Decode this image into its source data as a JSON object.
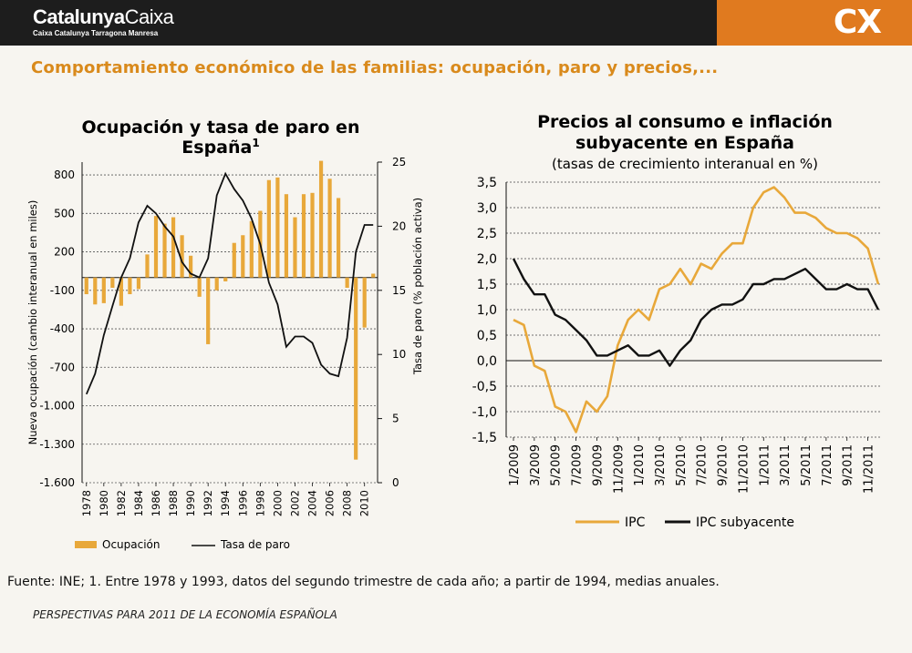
{
  "header": {
    "brand_bold": "Catalunya",
    "brand_light": "Caixa",
    "brand_sub": "Caixa Catalunya Tarragona Manresa",
    "logo": "CX",
    "accent_color": "#e07a1f"
  },
  "main_title": "Comportamiento económico de las familias: ocupación, paro y precios,...",
  "footnote": "Fuente: INE; 1. Entre 1978 y 1993, datos del segundo trimestre de cada año; a partir de 1994, medias anuales.",
  "footer": "PERSPECTIVAS PARA 2011 DE LA ECONOMÍA ESPAÑOLA",
  "chart_data": [
    {
      "type": "bar",
      "title": "Ocupación y tasa de paro en España",
      "title_sup": "1",
      "ylabel": "Nueva ocupación (cambio interanual en miles)",
      "y2label": "Tasa de paro (% población activa)",
      "ylim": [
        -1600,
        900
      ],
      "yticks": [
        800,
        500,
        200,
        -100,
        -400,
        -700,
        -1000,
        -1300,
        -1600
      ],
      "ytick_labels": [
        "800",
        "500",
        "200",
        "-100",
        "-400",
        "-700",
        "-1.000",
        "-1.300",
        "-1.600"
      ],
      "y2lim": [
        0,
        25
      ],
      "y2ticks": [
        25,
        20,
        15,
        10,
        5,
        0
      ],
      "x": [
        1978,
        1979,
        1980,
        1981,
        1982,
        1983,
        1984,
        1985,
        1986,
        1987,
        1988,
        1989,
        1990,
        1991,
        1992,
        1993,
        1994,
        1995,
        1996,
        1997,
        1998,
        1999,
        2000,
        2001,
        2002,
        2003,
        2004,
        2005,
        2006,
        2007,
        2008,
        2009,
        2010,
        2011
      ],
      "xtick_labels": [
        "1978",
        "1980",
        "1982",
        "1984",
        "1986",
        "1988",
        "1990",
        "1992",
        "1994",
        "1996",
        "1998",
        "2000",
        "2002",
        "2004",
        "2006",
        "2008",
        "2010"
      ],
      "legend": [
        "Ocupación",
        "Tasa de paro"
      ],
      "series": [
        {
          "name": "Ocupación",
          "type": "bar",
          "axis": "left",
          "color": "#e8a83a",
          "values": [
            -130,
            -210,
            -200,
            -80,
            -220,
            -130,
            -90,
            180,
            480,
            420,
            470,
            330,
            170,
            -150,
            -520,
            -100,
            -30,
            270,
            330,
            440,
            520,
            760,
            780,
            650,
            470,
            650,
            660,
            910,
            770,
            620,
            -80,
            -1420,
            -390,
            30
          ]
        },
        {
          "name": "Tasa de paro",
          "type": "line",
          "axis": "right",
          "color": "#111111",
          "values": [
            6.9,
            8.5,
            11.5,
            13.8,
            16.0,
            17.5,
            20.3,
            21.6,
            21.0,
            20.0,
            19.2,
            17.2,
            16.3,
            16.0,
            17.5,
            22.4,
            24.1,
            22.9,
            22.0,
            20.6,
            18.6,
            15.6,
            13.9,
            10.6,
            11.4,
            11.4,
            10.9,
            9.2,
            8.5,
            8.3,
            11.3,
            18.0,
            20.1,
            20.1
          ]
        }
      ]
    },
    {
      "type": "line",
      "title": "Precios al consumo e inflación subyacente en España",
      "subtitle": "(tasas de crecimiento interanual en %)",
      "ylim": [
        -1.5,
        3.5
      ],
      "yticks": [
        3.5,
        3.0,
        2.5,
        2.0,
        1.5,
        1.0,
        0.5,
        0.0,
        -0.5,
        -1.0,
        -1.5
      ],
      "ytick_labels": [
        "3,5",
        "3,0",
        "2,5",
        "2,0",
        "1,5",
        "1,0",
        "0,5",
        "0,0",
        "-0,5",
        "-1,0",
        "-1,5"
      ],
      "grid": true,
      "x": [
        "1/2009",
        "2/2009",
        "3/2009",
        "4/2009",
        "5/2009",
        "6/2009",
        "7/2009",
        "8/2009",
        "9/2009",
        "10/2009",
        "11/2009",
        "12/2009",
        "1/2010",
        "2/2010",
        "3/2010",
        "4/2010",
        "5/2010",
        "6/2010",
        "7/2010",
        "8/2010",
        "9/2010",
        "10/2010",
        "11/2010",
        "12/2010",
        "1/2011",
        "2/2011",
        "3/2011",
        "4/2011",
        "5/2011",
        "6/2011",
        "7/2011",
        "8/2011",
        "9/2011",
        "10/2011",
        "11/2011",
        "12/2011"
      ],
      "xtick_labels": [
        "1/2009",
        "3/2009",
        "5/2009",
        "7/2009",
        "9/2009",
        "11/2009",
        "1/2010",
        "3/2010",
        "5/2010",
        "7/2010",
        "9/2010",
        "11/2010",
        "1/2011",
        "3/2011",
        "5/2011",
        "7/2011",
        "9/2011",
        "11/2011"
      ],
      "legend": [
        "IPC",
        "IPC subyacente"
      ],
      "series": [
        {
          "name": "IPC",
          "color": "#e8a83a",
          "values": [
            0.8,
            0.7,
            -0.1,
            -0.2,
            -0.9,
            -1.0,
            -1.4,
            -0.8,
            -1.0,
            -0.7,
            0.3,
            0.8,
            1.0,
            0.8,
            1.4,
            1.5,
            1.8,
            1.5,
            1.9,
            1.8,
            2.1,
            2.3,
            2.3,
            3.0,
            3.3,
            3.4,
            3.2,
            2.9,
            2.9,
            2.8,
            2.6,
            2.5,
            2.5,
            2.4,
            2.2,
            1.5
          ]
        },
        {
          "name": "IPC subyacente",
          "color": "#111111",
          "values": [
            2.0,
            1.6,
            1.3,
            1.3,
            0.9,
            0.8,
            0.6,
            0.4,
            0.1,
            0.1,
            0.2,
            0.3,
            0.1,
            0.1,
            0.2,
            -0.1,
            0.2,
            0.4,
            0.8,
            1.0,
            1.1,
            1.1,
            1.2,
            1.5,
            1.5,
            1.6,
            1.6,
            1.7,
            1.8,
            1.6,
            1.4,
            1.4,
            1.5,
            1.4,
            1.4,
            1.0
          ]
        }
      ]
    }
  ]
}
